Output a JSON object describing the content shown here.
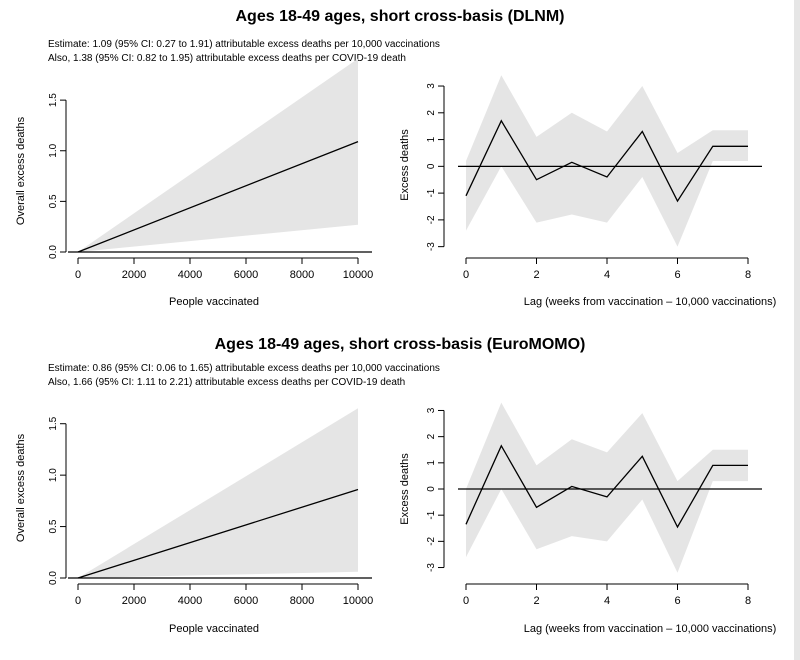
{
  "colors": {
    "band": "#e5e5e5",
    "line": "#000000",
    "background": "#ffffff"
  },
  "sections": [
    {
      "title": "Ages 18-49 ages, short cross-basis (DLNM)",
      "notes": [
        "Estimate: 1.09 (95% CI: 0.27 to 1.91) attributable excess deaths per 10,000 vaccinations",
        "Also, 1.38 (95% CI: 0.82 to 1.95) attributable excess deaths per COVID-19 death"
      ]
    },
    {
      "title": "Ages 18-49 ages, short cross-basis (EuroMOMO)",
      "notes": [
        "Estimate: 0.86 (95% CI: 0.06 to 1.65) attributable excess deaths per 10,000 vaccinations",
        "Also, 1.66 (95% CI: 1.11 to 2.21) attributable excess deaths per COVID-19 death"
      ]
    }
  ],
  "chart_data": [
    {
      "type": "line",
      "xlabel": "People vaccinated",
      "ylabel": "Overall excess deaths",
      "xlim": [
        0,
        10000
      ],
      "ylim": [
        0,
        1.6
      ],
      "xticks": [
        0,
        2000,
        4000,
        6000,
        8000,
        10000
      ],
      "yticks": [
        0.0,
        0.5,
        1.0,
        1.5
      ],
      "ytick_labels": [
        "0.0",
        "0.5",
        "1.0",
        "1.5"
      ],
      "x": [
        0,
        10000
      ],
      "y": [
        0,
        1.09
      ],
      "lower": [
        0,
        0.27
      ],
      "upper": [
        0,
        1.91
      ],
      "reference_line": 0
    },
    {
      "type": "line",
      "xlabel": "Lag (weeks from vaccination – 10,000 vaccinations)",
      "ylabel": "Excess deaths",
      "xlim": [
        0,
        8
      ],
      "ylim": [
        -3.2,
        3.3
      ],
      "xticks": [
        0,
        2,
        4,
        6,
        8
      ],
      "yticks": [
        -3,
        -2,
        -1,
        0,
        1,
        2,
        3
      ],
      "ytick_labels": [
        "-3",
        "-2",
        "-1",
        "0",
        "1",
        "2",
        "3"
      ],
      "x": [
        0,
        1,
        2,
        3,
        4,
        5,
        6,
        7,
        8
      ],
      "y": [
        -1.1,
        1.7,
        -0.5,
        0.15,
        -0.4,
        1.3,
        -1.3,
        0.75,
        0.75
      ],
      "lower": [
        -2.4,
        0.0,
        -2.1,
        -1.8,
        -2.1,
        -0.4,
        -3.0,
        0.2,
        0.2
      ],
      "upper": [
        0.2,
        3.4,
        1.1,
        2.0,
        1.3,
        3.0,
        0.5,
        1.35,
        1.35
      ],
      "reference_line": 0
    },
    {
      "type": "line",
      "xlabel": "People vaccinated",
      "ylabel": "Overall excess deaths",
      "xlim": [
        0,
        10000
      ],
      "ylim": [
        0,
        1.75
      ],
      "xticks": [
        0,
        2000,
        4000,
        6000,
        8000,
        10000
      ],
      "yticks": [
        0.0,
        0.5,
        1.0,
        1.5
      ],
      "ytick_labels": [
        "0.0",
        "0.5",
        "1.0",
        "1.5"
      ],
      "x": [
        0,
        10000
      ],
      "y": [
        0,
        0.86
      ],
      "lower": [
        0,
        0.06
      ],
      "upper": [
        0,
        1.65
      ],
      "reference_line": 0
    },
    {
      "type": "line",
      "xlabel": "Lag (weeks from vaccination – 10,000 vaccinations)",
      "ylabel": "Excess deaths",
      "xlim": [
        0,
        8
      ],
      "ylim": [
        -3.4,
        3.4
      ],
      "xticks": [
        0,
        2,
        4,
        6,
        8
      ],
      "yticks": [
        -3,
        -2,
        -1,
        0,
        1,
        2,
        3
      ],
      "ytick_labels": [
        "-3",
        "-2",
        "-1",
        "0",
        "1",
        "2",
        "3"
      ],
      "x": [
        0,
        1,
        2,
        3,
        4,
        5,
        6,
        7,
        8
      ],
      "y": [
        -1.35,
        1.65,
        -0.7,
        0.1,
        -0.3,
        1.25,
        -1.45,
        0.9,
        0.9
      ],
      "lower": [
        -2.6,
        0.0,
        -2.3,
        -1.8,
        -2.0,
        -0.4,
        -3.2,
        0.3,
        0.3
      ],
      "upper": [
        0.0,
        3.3,
        0.9,
        1.9,
        1.4,
        2.9,
        0.3,
        1.5,
        1.5
      ],
      "reference_line": 0
    }
  ]
}
